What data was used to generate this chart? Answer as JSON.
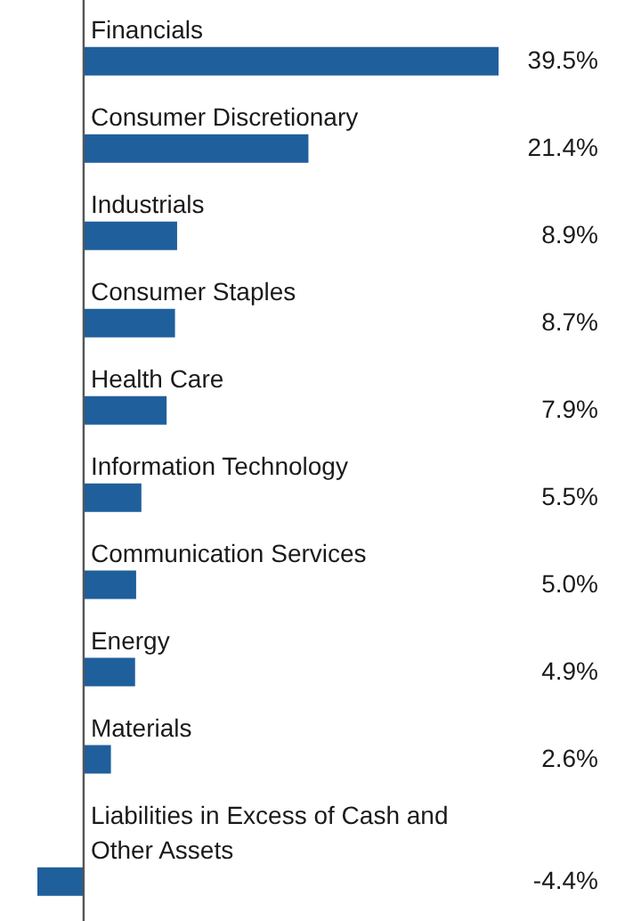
{
  "chart_data": {
    "type": "bar",
    "orientation": "horizontal",
    "color": "#1f5f9c",
    "categories": [
      "Financials",
      "Consumer Discretionary",
      "Industrials",
      "Consumer Staples",
      "Health Care",
      "Information Technology",
      "Communication Services",
      "Energy",
      "Materials",
      "Liabilities in Excess of Cash and Other Assets"
    ],
    "values": [
      39.5,
      21.4,
      8.9,
      8.7,
      7.9,
      5.5,
      5.0,
      4.9,
      2.6,
      -4.4
    ],
    "value_labels": [
      "39.5%",
      "21.4%",
      "8.9%",
      "8.7%",
      "7.9%",
      "5.5%",
      "5.0%",
      "4.9%",
      "2.6%",
      "-4.4%"
    ],
    "legend": false
  }
}
